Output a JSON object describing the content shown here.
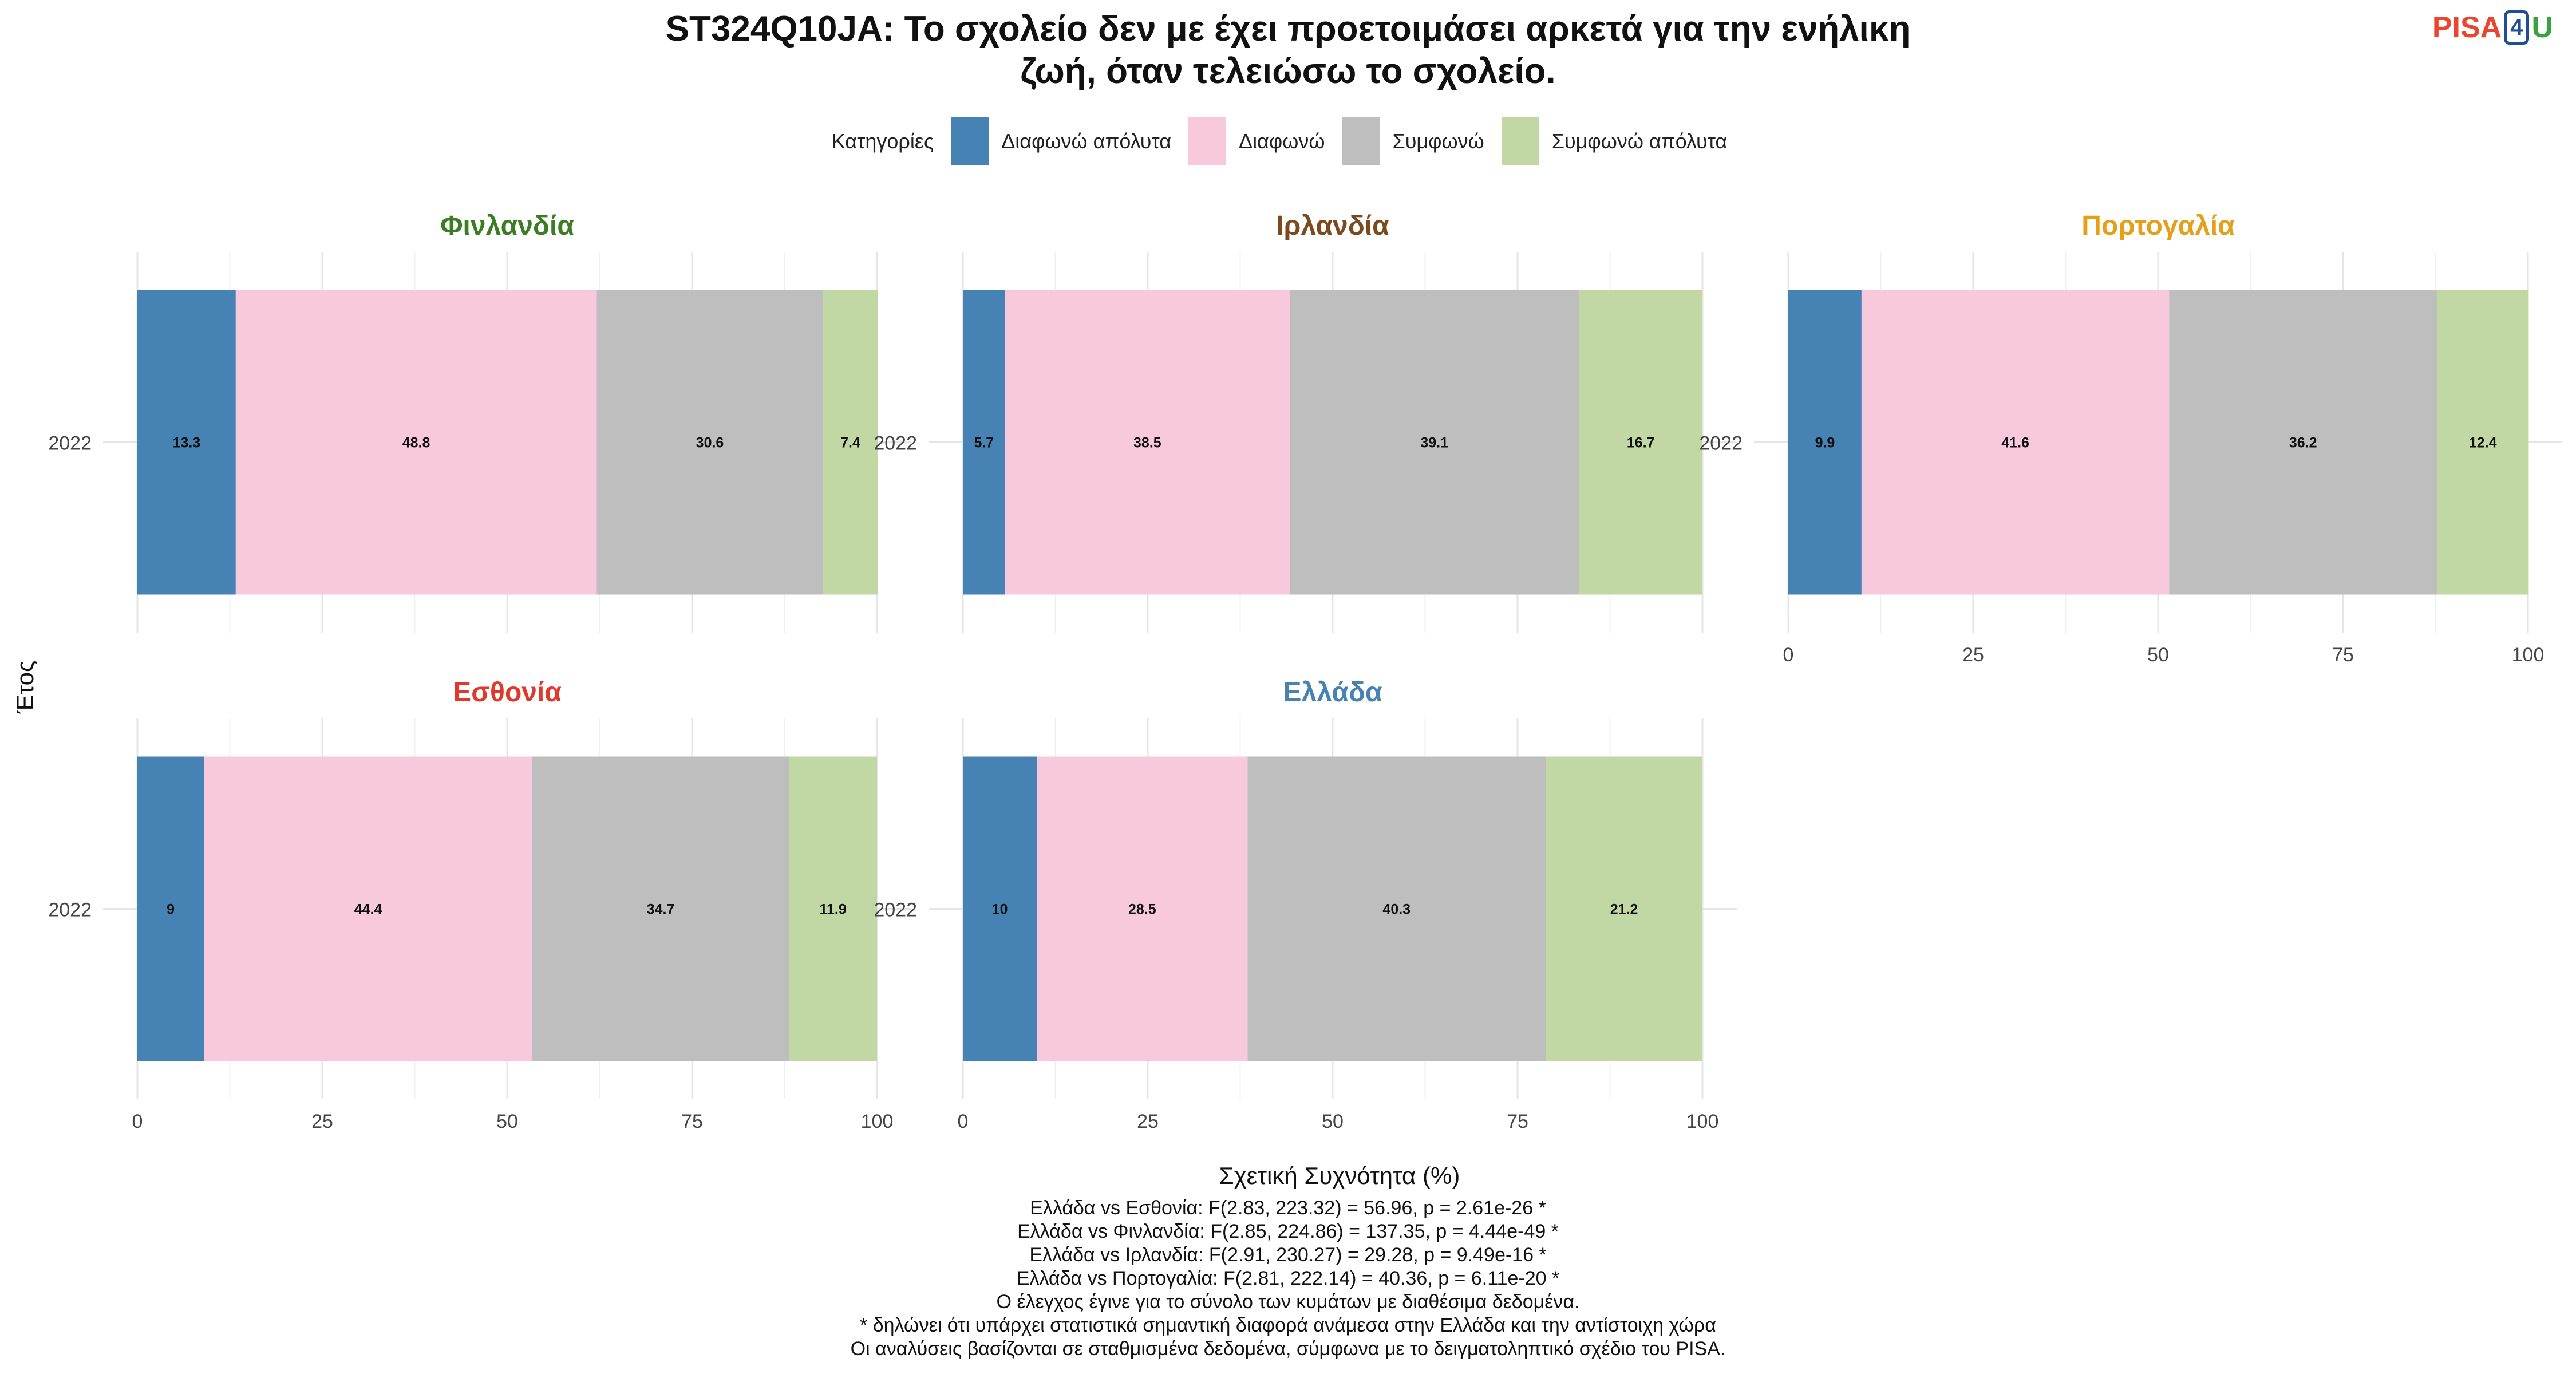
{
  "title_lines": [
    "ST324Q10JA: Το σχολείο δεν με έχει προετοιμάσει αρκετά για την ενήλικη",
    "ζωή, όταν τελειώσω το σχολείο."
  ],
  "logo": {
    "part1": "PISA",
    "part2": "4",
    "part3": "U"
  },
  "legend": {
    "title": "Κατηγορίες",
    "items": [
      {
        "label": "Διαφωνώ απόλυτα",
        "color": "#4682b4"
      },
      {
        "label": "Διαφωνώ",
        "color": "#f8c8dc"
      },
      {
        "label": "Συμφωνώ",
        "color": "#bebebe"
      },
      {
        "label": "Συμφωνώ απόλυτα",
        "color": "#c2d8a4"
      }
    ]
  },
  "footer_lines": [
    "Ελλάδα vs Εσθονία: F(2.83, 223.32) = 56.96, p = 2.61e-26 *",
    "Ελλάδα vs Φινλανδία: F(2.85, 224.86) = 137.35, p = 4.44e-49 *",
    "Ελλάδα vs Ιρλανδία: F(2.91, 230.27) = 29.28, p = 9.49e-16 *",
    "Ελλάδα vs Πορτογαλία: F(2.81, 222.14) = 40.36, p = 6.11e-20 *",
    "Ο έλεγχος έγινε για το σύνολο των κυμάτων με διαθέσιμα δεδομένα.",
    "* δηλώνει ότι υπάρχει στατιστικά σημαντική διαφορά ανάμεσα στην Ελλάδα και την αντίστοιχη χώρα",
    "Οι αναλύσεις βασίζονται σε σταθμισμένα δεδομένα, σύμφωνα με το δειγματοληπτικό σχέδιο του PISA."
  ],
  "chart_data": {
    "type": "bar",
    "orientation": "horizontal",
    "stacked": true,
    "xlabel": "Σχετική Συχνότητα (%)",
    "ylabel": "Έτος",
    "xlim": [
      0,
      100
    ],
    "xticks": [
      0,
      25,
      50,
      75,
      100
    ],
    "grid": true,
    "legend_position": "top",
    "categories": [
      "Διαφωνώ απόλυτα",
      "Διαφωνώ",
      "Συμφωνώ",
      "Συμφωνώ απόλυτα"
    ],
    "panels": [
      {
        "country": "Φινλανδία",
        "title_color": "#3a7d22",
        "year": "2022",
        "values": [
          13.3,
          48.8,
          30.6,
          7.4
        ]
      },
      {
        "country": "Ιρλανδία",
        "title_color": "#7b4a1e",
        "year": "2022",
        "values": [
          5.7,
          38.5,
          39.1,
          16.7
        ]
      },
      {
        "country": "Πορτογαλία",
        "title_color": "#e5a01a",
        "year": "2022",
        "values": [
          9.9,
          41.6,
          36.2,
          12.4
        ]
      },
      {
        "country": "Εσθονία",
        "title_color": "#e0382b",
        "year": "2022",
        "values": [
          9,
          44.4,
          34.7,
          11.9
        ]
      },
      {
        "country": "Ελλάδα",
        "title_color": "#4682b4",
        "year": "2022",
        "values": [
          10,
          28.5,
          40.3,
          21.2
        ]
      }
    ]
  }
}
